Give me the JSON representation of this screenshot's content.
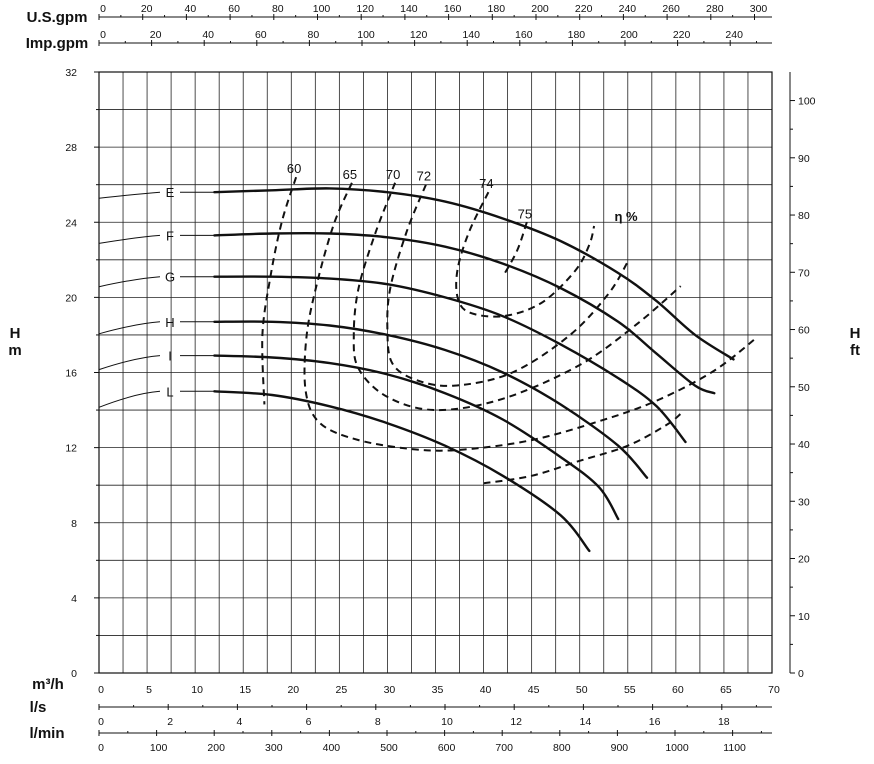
{
  "chart_data": {
    "type": "line",
    "x_axes": {
      "usgpm": {
        "label": "U.S.gpm",
        "ticks": [
          "0",
          "20",
          "40",
          "60",
          "80",
          "100",
          "120",
          "140",
          "160",
          "180",
          "200",
          "220",
          "240",
          "260",
          "280",
          "300"
        ]
      },
      "impgpm": {
        "label": "Imp.gpm",
        "ticks": [
          "0",
          "20",
          "40",
          "60",
          "80",
          "100",
          "120",
          "140",
          "160",
          "180",
          "200",
          "220",
          "240"
        ]
      },
      "m3h": {
        "label": "m³/h",
        "ticks": [
          "0",
          "5",
          "10",
          "15",
          "20",
          "25",
          "30",
          "35",
          "40",
          "45",
          "50",
          "55",
          "60",
          "65",
          "70"
        ],
        "range": [
          0,
          70
        ]
      },
      "ls": {
        "label": "l/s",
        "ticks": [
          "0",
          "2",
          "4",
          "6",
          "8",
          "10",
          "12",
          "14",
          "16",
          "18"
        ]
      },
      "lmin": {
        "label": "l/min",
        "ticks": [
          "0",
          "100",
          "200",
          "300",
          "400",
          "500",
          "600",
          "700",
          "800",
          "900",
          "1000",
          "1100"
        ]
      }
    },
    "y_axes": {
      "left": {
        "label_top": "H",
        "label_bottom": "m",
        "ticks": [
          "0",
          "4",
          "8",
          "12",
          "16",
          "20",
          "24",
          "28",
          "32"
        ],
        "range": [
          0,
          32
        ]
      },
      "right": {
        "label_top": "H",
        "label_bottom": "ft",
        "ticks": [
          "0",
          "10",
          "20",
          "30",
          "40",
          "50",
          "60",
          "70",
          "80",
          "90",
          "100"
        ]
      }
    },
    "grid": true,
    "series": [
      {
        "name": "E",
        "points": [
          [
            12,
            25.6
          ],
          [
            18,
            25.7
          ],
          [
            24,
            25.8
          ],
          [
            30,
            25.6
          ],
          [
            36,
            25.1
          ],
          [
            42,
            24.2
          ],
          [
            48,
            23.0
          ],
          [
            54,
            21.3
          ],
          [
            58,
            19.8
          ],
          [
            62,
            18.0
          ],
          [
            66,
            16.7
          ]
        ]
      },
      {
        "name": "F",
        "points": [
          [
            12,
            23.3
          ],
          [
            18,
            23.4
          ],
          [
            24,
            23.4
          ],
          [
            30,
            23.2
          ],
          [
            36,
            22.7
          ],
          [
            42,
            21.8
          ],
          [
            48,
            20.5
          ],
          [
            54,
            18.7
          ],
          [
            58,
            17.0
          ],
          [
            62,
            15.3
          ],
          [
            64,
            14.9
          ]
        ]
      },
      {
        "name": "G",
        "points": [
          [
            12,
            21.1
          ],
          [
            18,
            21.1
          ],
          [
            24,
            21.0
          ],
          [
            30,
            20.7
          ],
          [
            36,
            20.0
          ],
          [
            42,
            19.0
          ],
          [
            48,
            17.5
          ],
          [
            54,
            15.7
          ],
          [
            58,
            14.2
          ],
          [
            61,
            12.3
          ]
        ]
      },
      {
        "name": "H",
        "points": [
          [
            12,
            18.7
          ],
          [
            18,
            18.7
          ],
          [
            24,
            18.5
          ],
          [
            30,
            18.0
          ],
          [
            36,
            17.2
          ],
          [
            42,
            16.0
          ],
          [
            48,
            14.3
          ],
          [
            54,
            12.1
          ],
          [
            57,
            10.4
          ]
        ]
      },
      {
        "name": "I",
        "points": [
          [
            12,
            16.9
          ],
          [
            18,
            16.8
          ],
          [
            24,
            16.5
          ],
          [
            30,
            15.9
          ],
          [
            36,
            14.9
          ],
          [
            42,
            13.5
          ],
          [
            48,
            11.5
          ],
          [
            52,
            9.9
          ],
          [
            54,
            8.2
          ]
        ]
      },
      {
        "name": "L",
        "points": [
          [
            12,
            15.0
          ],
          [
            18,
            14.8
          ],
          [
            24,
            14.2
          ],
          [
            30,
            13.3
          ],
          [
            36,
            12.1
          ],
          [
            42,
            10.5
          ],
          [
            48,
            8.4
          ],
          [
            51,
            6.5
          ]
        ]
      }
    ],
    "efficiency_label": "η %",
    "efficiency_curves": [
      {
        "name": "60",
        "points": [
          [
            20.5,
            26.4
          ],
          [
            19,
            24
          ],
          [
            17.8,
            21
          ],
          [
            17,
            18
          ],
          [
            17.2,
            14.3
          ]
        ]
      },
      {
        "name": "65",
        "points": [
          [
            26.3,
            26.1
          ],
          [
            24.5,
            24
          ],
          [
            22.8,
            21
          ],
          [
            21.6,
            18
          ],
          [
            21.5,
            15
          ],
          [
            23,
            13.3
          ],
          [
            27,
            12.4
          ],
          [
            33,
            11.9
          ],
          [
            38,
            11.9
          ],
          [
            45,
            12.4
          ],
          [
            52,
            13.4
          ],
          [
            58,
            14.5
          ],
          [
            64,
            16.1
          ],
          [
            68.5,
            17.9
          ]
        ]
      },
      {
        "name": "70",
        "points": [
          [
            30.8,
            26.1
          ],
          [
            28.8,
            23.5
          ],
          [
            27,
            20.5
          ],
          [
            26.5,
            18
          ],
          [
            27,
            16.2
          ],
          [
            30,
            14.7
          ],
          [
            35,
            14.0
          ],
          [
            42,
            14.6
          ],
          [
            50,
            16.4
          ],
          [
            56,
            18.6
          ],
          [
            60.5,
            20.6
          ]
        ]
      },
      {
        "name": "72",
        "points": [
          [
            34,
            26.0
          ],
          [
            32,
            23.5
          ],
          [
            30.3,
            20.5
          ],
          [
            30,
            18.3
          ],
          [
            30.5,
            16.5
          ],
          [
            33,
            15.6
          ],
          [
            37,
            15.3
          ],
          [
            43,
            16.0
          ],
          [
            49,
            18.0
          ],
          [
            53,
            20.2
          ],
          [
            55,
            21.9
          ]
        ]
      },
      {
        "name": "74",
        "points": [
          [
            40.5,
            25.6
          ],
          [
            38.5,
            23.5
          ],
          [
            37.3,
            21.5
          ],
          [
            37.3,
            20.0
          ],
          [
            38.5,
            19.2
          ],
          [
            42,
            19.0
          ],
          [
            46,
            19.7
          ],
          [
            49.5,
            21.4
          ],
          [
            51,
            22.8
          ],
          [
            51.5,
            23.8
          ]
        ]
      },
      {
        "name": "75",
        "points": [
          [
            44.5,
            24.0
          ],
          [
            43.5,
            22.5
          ],
          [
            42,
            21.1
          ]
        ]
      },
      {
        "name": "",
        "points": [
          [
            40,
            10.1
          ],
          [
            45,
            10.5
          ],
          [
            50,
            11.3
          ],
          [
            55,
            12.1
          ],
          [
            59,
            13.2
          ],
          [
            60.5,
            13.8
          ]
        ]
      }
    ]
  }
}
